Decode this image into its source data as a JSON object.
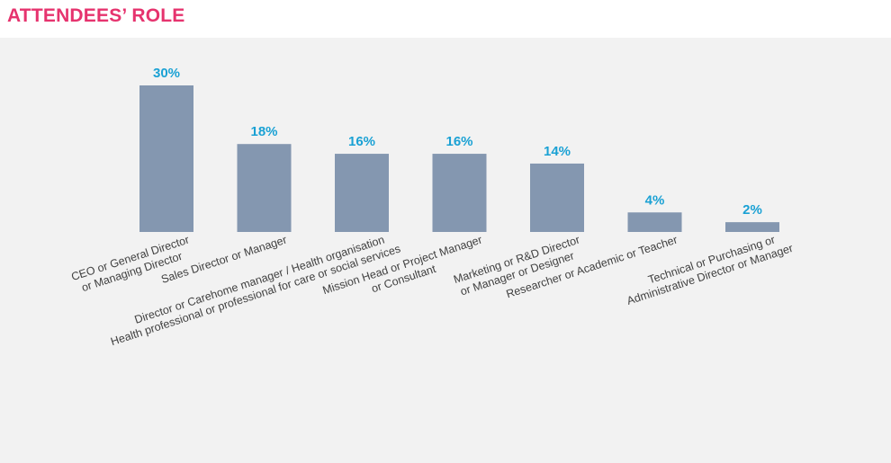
{
  "page": {
    "title": "ATTENDEES’ ROLE"
  },
  "colors": {
    "title": "#e6336e",
    "bar": "#8497b0",
    "value_label": "#1aa1d4",
    "panel_background": "#f2f2f2"
  },
  "chart_data": {
    "type": "bar",
    "title": "",
    "xlabel": "",
    "ylabel": "",
    "ylim": [
      0,
      30
    ],
    "grid": false,
    "categories": [
      [
        "CEO or General Director",
        "or Managing Director"
      ],
      [
        "Sales Director or Manager"
      ],
      [
        "Director or Carehome manager / Health organisation",
        "Health professional or professional for care or social services"
      ],
      [
        "Mission Head or Project Manager",
        "or Consultant"
      ],
      [
        "Marketing or R&D Director",
        "or Manager or Designer"
      ],
      [
        "Researcher or Academic or Teacher"
      ],
      [
        "Technical or Purchasing or",
        "Administrative Director or Manager"
      ]
    ],
    "values": [
      30,
      18,
      16,
      16,
      14,
      4,
      2
    ],
    "value_labels": [
      "30%",
      "18%",
      "16%",
      "16%",
      "14%",
      "4%",
      "2%"
    ],
    "unit": "%"
  }
}
